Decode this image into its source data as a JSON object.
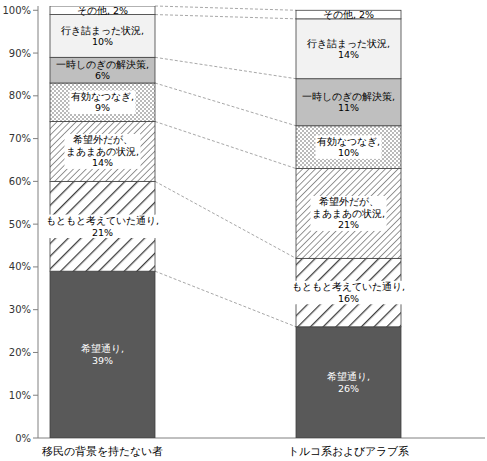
{
  "chart_data": {
    "type": "bar",
    "stacked": true,
    "data_labels": true,
    "grid": false,
    "categories": [
      "移民の背景を持たない者",
      "トルコ系およびアラブ系"
    ],
    "ylim": [
      0,
      101
    ],
    "yticks": [
      {
        "value": 0,
        "label": "0%"
      },
      {
        "value": 10,
        "label": "10%"
      },
      {
        "value": 20,
        "label": "20%"
      },
      {
        "value": 30,
        "label": "30%"
      },
      {
        "value": 40,
        "label": "40%"
      },
      {
        "value": 50,
        "label": "50%"
      },
      {
        "value": 60,
        "label": "60%"
      },
      {
        "value": 70,
        "label": "70%"
      },
      {
        "value": 80,
        "label": "80%"
      },
      {
        "value": 90,
        "label": "90%"
      },
      {
        "value": 100,
        "label": "100%"
      }
    ],
    "series": [
      {
        "name": "希望通り",
        "color": "#595959",
        "values": [
          39,
          26
        ],
        "value_labels": [
          "希望通り,\n39%",
          "希望通り,\n26%"
        ]
      },
      {
        "name": "もともと考えていた通り",
        "color": "#ffffff",
        "marker": "hatch",
        "values": [
          21,
          16
        ],
        "value_labels": [
          "もともと考えていた通り,\n21%",
          "もともと考えていた通り,\n16%"
        ]
      },
      {
        "name": "希望外だが、まあまあの状況",
        "color": "#ffffff",
        "marker": "hatch-fine",
        "values": [
          14,
          21
        ],
        "value_labels": [
          "希望外だが、\nまあまあの状況,\n14%",
          "希望外だが、\nまあまあの状況,\n21%"
        ]
      },
      {
        "name": "有効なつなぎ",
        "color": "#ffffff",
        "marker": "dots",
        "values": [
          9,
          10
        ],
        "value_labels": [
          "有効なつなぎ,\n9%",
          "有効なつなぎ,\n10%"
        ]
      },
      {
        "name": "一時しのぎの解決策",
        "color": "#bfbfbf",
        "values": [
          6,
          11
        ],
        "value_labels": [
          "一時しのぎの解決策,\n6%",
          "一時しのぎの解決策,\n11%"
        ]
      },
      {
        "name": "行き詰まった状況",
        "color": "#f2f2f2",
        "values": [
          10,
          14
        ],
        "value_labels": [
          "行き詰まった状況,\n10%",
          "行き詰まった状況,\n14%"
        ]
      },
      {
        "name": "その他",
        "color": "#ffffff",
        "values": [
          2,
          2
        ],
        "value_labels": [
          "その他, 2%",
          "その他, 2%"
        ]
      }
    ]
  }
}
